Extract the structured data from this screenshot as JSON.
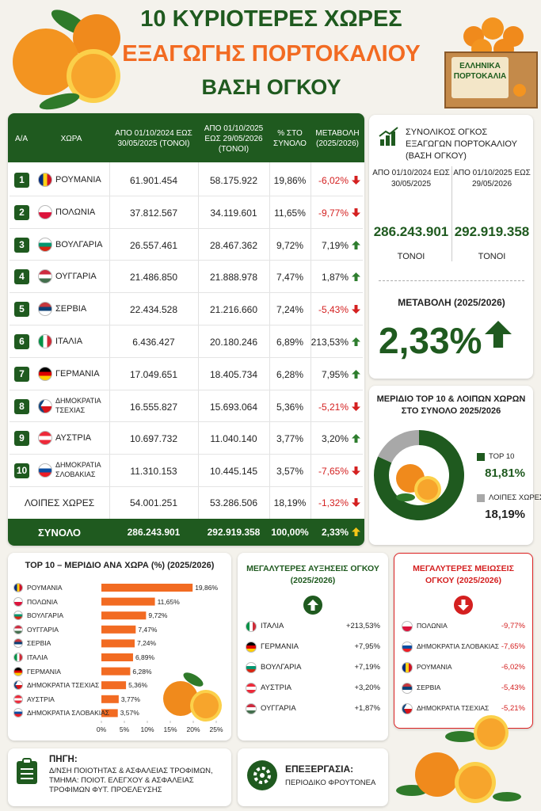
{
  "header": {
    "title_lines": [
      "10 ΚΥΡΙΟΤΕΡΕΣ ΧΩΡΕΣ",
      "ΕΞΑΓΩΓΗΣ ΠΟΡΤΟΚΑΛΙΟΥ",
      "ΒΑΣΗ ΟΓΚΟΥ"
    ],
    "crate_label": "ΕΛΛΗΝΙΚΑ\nΠΟΡΤΟΚΑΛΙΑ"
  },
  "table": {
    "columns": [
      "Α/Α",
      "ΧΩΡΑ",
      "ΑΠΟ 01/10/2024 ΕΩΣ 30/05/2025 (ΤΟΝΟΙ)",
      "ΑΠΟ 01/10/2025 ΕΩΣ 29/05/2026 (ΤΟΝΟΙ)",
      "% ΣΤΟ ΣΥΝΟΛΟ",
      "ΜΕΤΑΒΟΛΗ (2025/2026)"
    ],
    "rows": [
      [
        "1",
        "ΡΟΥΜΑΝΙΑ",
        "61.901.454",
        "58.175.922",
        "19,86%",
        "-6,02%"
      ],
      [
        "2",
        "ΠΟΛΩΝΙΑ",
        "37.812.567",
        "34.119.601",
        "11,65%",
        "-9,77%"
      ],
      [
        "3",
        "ΒΟΥΛΓΑΡΙΑ",
        "26.557.461",
        "28.467.362",
        "9,72%",
        "7,19%"
      ],
      [
        "4",
        "ΟΥΓΓΑΡΙΑ",
        "21.486.850",
        "21.888.978",
        "7,47%",
        "1,87%"
      ],
      [
        "5",
        "ΣΕΡΒΙΑ",
        "22.434.528",
        "21.216.660",
        "7,24%",
        "-5,43%"
      ],
      [
        "6",
        "ΙΤΑΛΙΑ",
        "6.436.427",
        "20.180.246",
        "6,89%",
        "213,53%"
      ],
      [
        "7",
        "ΓΕΡΜΑΝΙΑ",
        "17.049.651",
        "18.405.734",
        "6,28%",
        "7,95%"
      ],
      [
        "8",
        "ΔΗΜΟΚΡΑΤΙΑ ΤΣΕΧΙΑΣ",
        "16.555.827",
        "15.693.064",
        "5,36%",
        "-5,21%"
      ],
      [
        "9",
        "ΑΥΣΤΡΙΑ",
        "10.697.732",
        "11.040.140",
        "3,77%",
        "3,20%"
      ],
      [
        "10",
        "ΔΗΜΟΚΡΑΤΙΑ ΣΛΟΒΑΚΙΑΣ",
        "11.310.153",
        "10.445.145",
        "3,57%",
        "-7,65%"
      ]
    ],
    "others": [
      "ΛΟΙΠΕΣ ΧΩΡΕΣ",
      "54.001.251",
      "53.286.506",
      "18,19%",
      "-1,32%"
    ],
    "total": [
      "ΣΥΝΟΛΟ",
      "286.243.901",
      "292.919.358",
      "100,00%",
      "2,33%"
    ]
  },
  "summary": {
    "title": "ΣΥΝΟΛΙΚΟΣ ΟΓΚΟΣ ΕΞΑΓΩΓΩΝ ΠΟΡΤΟΚΑΛΙΟΥ (ΒΑΣΗ ΟΓΚΟΥ)",
    "periods": [
      {
        "label": "ΑΠΟ 01/10/2024 ΕΩΣ 30/05/2025",
        "value": "286.243.901",
        "unit": "ΤΟΝΟΙ"
      },
      {
        "label": "ΑΠΟ 01/10/2025 ΕΩΣ 29/05/2026",
        "value": "292.919.358",
        "unit": "ΤΟΝΟΙ"
      }
    ],
    "change_label": "ΜΕΤΑΒΟΛΗ (2025/2026)",
    "change_value": "2,33%"
  },
  "chart_data": [
    {
      "type": "bar",
      "orientation": "horizontal",
      "title": "TOP 10 – ΜΕΡΙΔΙΟ ΑΝΑ ΧΩΡΑ (%) (2025/2026)",
      "categories": [
        "ΡΟΥΜΑΝΙΑ",
        "ΠΟΛΩΝΙΑ",
        "ΒΟΥΛΓΑΡΙΑ",
        "ΟΥΓΓΑΡΙΑ",
        "ΣΕΡΒΙΑ",
        "ΙΤΑΛΙΑ",
        "ΓΕΡΜΑΝΙΑ",
        "ΔΗΜΟΚΡΑΤΙΑ ΤΣΕΧΙΑΣ",
        "ΑΥΣΤΡΙΑ",
        "ΔΗΜΟΚΡΑΤΙΑ ΣΛΟΒΑΚΙΑΣ"
      ],
      "values": [
        19.86,
        11.65,
        9.72,
        7.47,
        7.24,
        6.89,
        6.28,
        5.36,
        3.77,
        3.57
      ],
      "value_labels": [
        "19,86%",
        "11,65%",
        "9,72%",
        "7,47%",
        "7,24%",
        "6,89%",
        "6,28%",
        "5,36%",
        "3,77%",
        "3,57%"
      ],
      "color": "#f26b22",
      "xlim": [
        0,
        25
      ],
      "xticks": [
        {
          "value": 0,
          "label": "0%"
        },
        {
          "value": 5,
          "label": "5%"
        },
        {
          "value": 10,
          "label": "10%"
        },
        {
          "value": 15,
          "label": "15%"
        },
        {
          "value": 20,
          "label": "20%"
        },
        {
          "value": 25,
          "label": "25%"
        }
      ],
      "grid": false
    },
    {
      "type": "pie",
      "title": "ΜΕΡΙΔΙΟ TOP 10 & ΛΟΙΠΩΝ ΧΩΡΩΝ ΣΤΟ ΣΥΝΟΛΟ 2025/2026",
      "categories": [
        "TOP 10",
        "ΛΟΙΠΕΣ ΧΩΡΕΣ"
      ],
      "values": [
        81.81,
        18.19
      ],
      "value_labels": [
        "81,81%",
        "18,19%"
      ],
      "colors": [
        "#1f5a1f",
        "#a8a8a8"
      ],
      "donut": true
    }
  ],
  "increases": {
    "title": "ΜΕΓΑΛΥΤΕΡΕΣ ΑΥΞΗΣΕΙΣ ΟΓΚΟΥ (2025/2026)",
    "rows": [
      [
        "ΙΤΑΛΙΑ",
        "+213,53%"
      ],
      [
        "ΓΕΡΜΑΝΙΑ",
        "+7,95%"
      ],
      [
        "ΒΟΥΛΓΑΡΙΑ",
        "+7,19%"
      ],
      [
        "ΑΥΣΤΡΙΑ",
        "+3,20%"
      ],
      [
        "ΟΥΓΓΑΡΙΑ",
        "+1,87%"
      ]
    ]
  },
  "decreases": {
    "title": "ΜΕΓΑΛΥΤΕΡΕΣ ΜΕΙΩΣΕΙΣ ΟΓΚΟΥ (2025/2026)",
    "rows": [
      [
        "ΠΟΛΩΝΙΑ",
        "-9,77%"
      ],
      [
        "ΔΗΜΟΚΡΑΤΙΑ ΣΛΟΒΑΚΙΑΣ",
        "-7,65%"
      ],
      [
        "ΡΟΥΜΑΝΙΑ",
        "-6,02%"
      ],
      [
        "ΣΕΡΒΙΑ",
        "-5,43%"
      ],
      [
        "ΔΗΜΟΚΡΑΤΙΑ ΤΣΕΧΙΑΣ",
        "-5,21%"
      ]
    ]
  },
  "footer": {
    "source_label": "ΠΗΓΗ:",
    "source_text": "Δ/ΝΣΗ ΠΟΙΟΤΗΤΑΣ & ΑΣΦΑΛΕΙΑΣ ΤΡΟΦΙΜΩΝ, ΤΜΗΜΑ: ΠΟΙΟΤ. ΕΛΕΓΧΟΥ & ΑΣΦΑΛΕΙΑΣ ΤΡΟΦΙΜΩΝ ΦΥΤ. ΠΡΟΕΛΕΥΣΗΣ",
    "processing_label": "ΕΠΕΞΕΡΓΑΣΙΑ:",
    "processing_text": "ΠΕΡΙΟΔΙΚΟ ΦΡΟΥΤΟΝΕΑ"
  }
}
